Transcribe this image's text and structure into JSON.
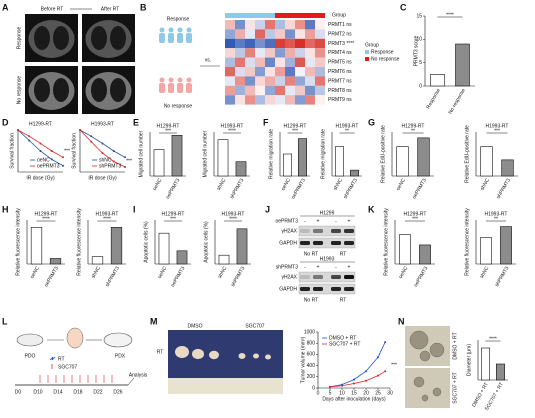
{
  "panels": {
    "A": {
      "letter": "A",
      "before": "Before RT",
      "after": "After RT",
      "response": "Response",
      "no_response": "No response"
    },
    "B": {
      "letter": "B",
      "response": "Response",
      "no_response": "No response",
      "vs": "vs.",
      "group": "Group",
      "rows": [
        "PRMT1 ns",
        "PRMT2 ns",
        "PRMT3 ****",
        "PRMT4 ns",
        "PRMT5 ns",
        "PRMT6 ns",
        "PRMT7 ns",
        "PRMT8 ns",
        "PRMT9 ns"
      ],
      "legend_title": "Group",
      "legend": [
        {
          "name": "Response",
          "color": "#8ecae6"
        },
        {
          "name": "No response",
          "color": "#e41a1c"
        }
      ],
      "column_groups": [
        0,
        0,
        0,
        0,
        0,
        1,
        1,
        1,
        1,
        1
      ],
      "cells": [
        [
          0.5,
          -1,
          0.2,
          -0.4,
          1,
          -0.6,
          0.3,
          0.8,
          -1.2,
          0.1
        ],
        [
          -0.8,
          0.6,
          -0.2,
          1.1,
          -0.5,
          0.4,
          -1,
          0.2,
          0.7,
          -0.3
        ],
        [
          -1.5,
          -1.2,
          -1.4,
          -1,
          -1.3,
          1.4,
          1.2,
          1.5,
          1.1,
          1.3
        ],
        [
          0.3,
          -0.5,
          0.9,
          -0.2,
          0.4,
          -0.9,
          0.6,
          -0.4,
          0.2,
          0.8
        ],
        [
          -0.6,
          1,
          -0.3,
          0.5,
          -1.1,
          0.2,
          -0.7,
          1.2,
          -0.2,
          0.4
        ],
        [
          1.1,
          -0.3,
          0.4,
          -0.9,
          0.2,
          0.7,
          -1.2,
          -0.1,
          0.5,
          -0.6
        ],
        [
          -0.2,
          0.8,
          -1,
          0.3,
          0.6,
          -0.4,
          0.9,
          -0.8,
          -0.3,
          1
        ],
        [
          0.7,
          -0.7,
          0.5,
          0.1,
          -0.8,
          1,
          -0.2,
          0.4,
          -1,
          -0.5
        ],
        [
          -1,
          0.2,
          0.8,
          -0.6,
          0.3,
          -0.2,
          0.5,
          -0.9,
          0.9,
          0.1
        ]
      ]
    },
    "C": {
      "letter": "C",
      "chart": {
        "ylabel": "PRMT3 score",
        "categories": [
          "Response",
          "No response"
        ],
        "values": [
          2.5,
          9
        ],
        "ylim": [
          0,
          15
        ],
        "yticks": [
          0,
          5,
          10,
          15
        ],
        "sig": "****"
      }
    },
    "D": {
      "letter": "D",
      "charts": [
        {
          "title": "H1299-RT",
          "xlabel": "IR dose (Gy)",
          "ylabel": "Survival fraction",
          "x": [
            0,
            2,
            4,
            6,
            8
          ],
          "xlim": [
            0,
            8
          ],
          "ylim": [
            0,
            1
          ],
          "series": [
            {
              "name": "oeNC",
              "color": "#1f4e9e",
              "values": [
                1,
                0.75,
                0.5,
                0.3,
                0.15
              ]
            },
            {
              "name": "oePRMT3",
              "color": "#d62728",
              "values": [
                1,
                0.85,
                0.68,
                0.5,
                0.35
              ]
            }
          ],
          "sig": "***"
        },
        {
          "title": "H1993-RT",
          "xlabel": "IR dose (Gy)",
          "ylabel": "Survival fraction",
          "x": [
            0,
            2,
            4,
            6,
            8
          ],
          "xlim": [
            0,
            8
          ],
          "ylim": [
            0,
            1
          ],
          "series": [
            {
              "name": "shNC",
              "color": "#1f4e9e",
              "values": [
                1,
                0.85,
                0.68,
                0.5,
                0.35
              ]
            },
            {
              "name": "shPRMT3",
              "color": "#d62728",
              "values": [
                1,
                0.72,
                0.45,
                0.25,
                0.12
              ]
            }
          ],
          "sig": "***"
        }
      ]
    },
    "E": {
      "letter": "E",
      "charts": [
        {
          "title": "H1299-RT",
          "ylabel": "Migrated cell number",
          "categories": [
            "oeNC",
            "oePRMT3"
          ],
          "values": [
            240,
            370
          ],
          "ylim": [
            0,
            400
          ],
          "sig": "***"
        },
        {
          "title": "H1993-RT",
          "ylabel": "Migrated cell number",
          "categories": [
            "shNC",
            "shPRMT3"
          ],
          "values": [
            330,
            130
          ],
          "ylim": [
            0,
            400
          ],
          "sig": "****"
        }
      ]
    },
    "F": {
      "letter": "F",
      "charts": [
        {
          "title": "H1299-RT",
          "ylabel": "Relative migration rate",
          "categories": [
            "oeNC",
            "oePRMT3"
          ],
          "values": [
            1,
            1.7
          ],
          "ylim": [
            0,
            2
          ],
          "sig": "***"
        },
        {
          "title": "H1993-RT",
          "ylabel": "Relative migration rate",
          "categories": [
            "shNC",
            "shPRMT3"
          ],
          "values": [
            1,
            0.2
          ],
          "ylim": [
            0,
            1.5
          ],
          "sig": "**"
        }
      ]
    },
    "G": {
      "letter": "G",
      "charts": [
        {
          "title": "H1299-RT",
          "ylabel": "Relative EdU-positive rate",
          "categories": [
            "oeNC",
            "oePRMT3"
          ],
          "values": [
            1,
            1.3
          ],
          "ylim": [
            0,
            1.5
          ],
          "sig": "**"
        },
        {
          "title": "H1993-RT",
          "ylabel": "Relative EdU-positive rate",
          "categories": [
            "shNC",
            "shPRMT3"
          ],
          "values": [
            1,
            0.55
          ],
          "ylim": [
            0,
            1.5
          ],
          "sig": "***"
        }
      ]
    },
    "H": {
      "letter": "H",
      "charts": [
        {
          "title": "H1299-RT",
          "ylabel": "Relative fluorescence intensity",
          "categories": [
            "oeNC",
            "oePRMT3"
          ],
          "values": [
            1,
            0.15
          ],
          "ylim": [
            0,
            1.2
          ],
          "sig": "****"
        },
        {
          "title": "H1993-RT",
          "ylabel": "Relative fluorescence intensity",
          "categories": [
            "shNC",
            "shPRMT3"
          ],
          "values": [
            0.2,
            1
          ],
          "ylim": [
            0,
            1.2
          ],
          "sig": "****"
        }
      ]
    },
    "I": {
      "letter": "I",
      "charts": [
        {
          "title": "H1299-RT",
          "ylabel": "Apoptotic cells (%)",
          "categories": [
            "oeNC",
            "oePRMT3"
          ],
          "values": [
            7,
            3
          ],
          "ylim": [
            0,
            10
          ],
          "sig": "***"
        },
        {
          "title": "H1993-RT",
          "ylabel": "Apoptotic cells (%)",
          "categories": [
            "shNC",
            "shPRMT3"
          ],
          "values": [
            3,
            12
          ],
          "ylim": [
            0,
            15
          ],
          "sig": "****"
        }
      ]
    },
    "J": {
      "letter": "J",
      "conditions": [
        "No RT",
        "RT"
      ],
      "blots": [
        {
          "cell": "H1299",
          "treatment": "oePRMT3",
          "signs": [
            "-",
            "+",
            "-",
            "+"
          ],
          "proteins": [
            "γH2AX",
            "GAPDH"
          ]
        },
        {
          "cell": "H1993",
          "treatment": "shPRMT3",
          "signs": [
            "-",
            "+",
            "-",
            "+"
          ],
          "proteins": [
            "γH2AX",
            "GAPDH"
          ]
        }
      ]
    },
    "K": {
      "letter": "K",
      "charts": [
        {
          "title": "H1299-RT",
          "ylabel": "Relative fluorescence intensity",
          "categories": [
            "oeNC",
            "oePRMT3"
          ],
          "values": [
            1,
            0.65
          ],
          "ylim": [
            0,
            1.5
          ],
          "sig": "***"
        },
        {
          "title": "H1993-RT",
          "ylabel": "Relative fluorescence intensity",
          "categories": [
            "shNC",
            "shPRMT3"
          ],
          "values": [
            0.6,
            0.85
          ],
          "ylim": [
            0,
            1
          ],
          "sig": "**"
        }
      ]
    },
    "L": {
      "letter": "L",
      "pdo": "PDO",
      "pdx": "PDX",
      "legend": [
        "RT",
        "SGC707"
      ],
      "days": [
        "D0",
        "D10",
        "D14",
        "D18",
        "D22",
        "D26"
      ],
      "analysis": "Analysis"
    },
    "M": {
      "letter": "M",
      "dmso": "DMSO",
      "sgc": "SGC707",
      "rt": "RT",
      "chart": {
        "xlabel": "Days after inoculation (days)",
        "ylabel": "Tumor volume (mm³)",
        "x": [
          5,
          10,
          15,
          20,
          25,
          28
        ],
        "xlim": [
          0,
          30
        ],
        "ylim": [
          0,
          1000
        ],
        "xticks": [
          0,
          5,
          10,
          15,
          20,
          25,
          30
        ],
        "yticks": [
          0,
          200,
          400,
          600,
          800,
          1000
        ],
        "series": [
          {
            "name": "DMSO + RT",
            "color": "#1f4ed8",
            "values": [
              20,
              60,
              150,
              300,
              550,
              820
            ]
          },
          {
            "name": "SGC707 + RT",
            "color": "#d62728",
            "values": [
              20,
              40,
              80,
              130,
              220,
              300
            ]
          }
        ],
        "sig": "***"
      }
    },
    "N": {
      "letter": "N",
      "image_labels": [
        "DMSO + RT",
        "SGC707 + RT"
      ],
      "chart": {
        "ylabel": "Diameter (μm)",
        "categories": [
          "DMSO + RT",
          "SGC707 + RT"
        ],
        "values": [
          200,
          100
        ],
        "ylim": [
          0,
          250
        ],
        "sig": "****"
      }
    }
  },
  "bar_colors": [
    "#ffffff",
    "#8c8c8c"
  ]
}
